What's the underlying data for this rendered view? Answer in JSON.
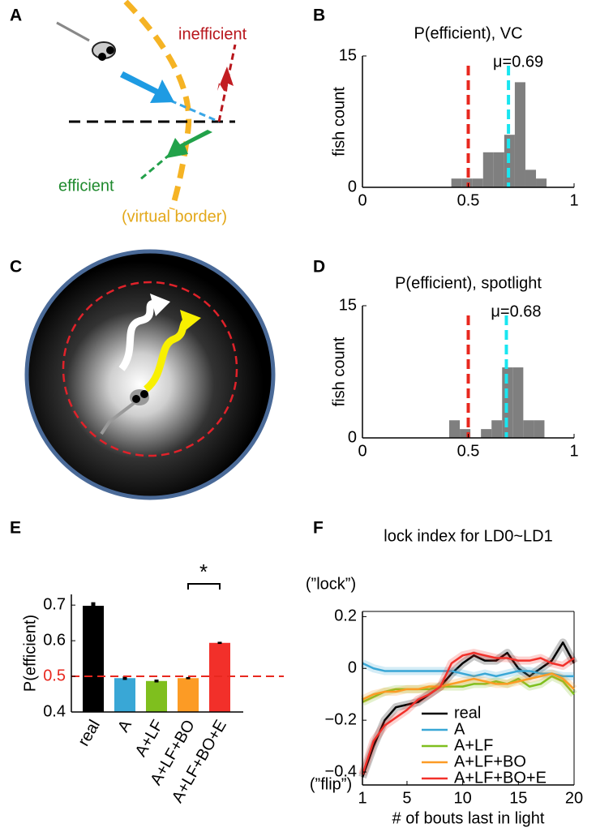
{
  "panels": {
    "labels": [
      "A",
      "B",
      "C",
      "D",
      "E",
      "F"
    ]
  },
  "diagram_a": {
    "inefficient": "inefficient",
    "efficient": "efficient",
    "border": "(virtual border)"
  },
  "chart_data": [
    {
      "type": "histogram",
      "title": "P(efficient), VC",
      "ylabel": "fish count",
      "annotation": "μ=0.69",
      "bins": [
        0.42,
        0.47,
        0.52,
        0.57,
        0.62,
        0.67,
        0.72,
        0.77,
        0.82,
        0.87
      ],
      "counts": [
        1,
        1,
        1,
        4,
        4,
        6,
        12,
        2,
        1
      ],
      "color": "#7f7f7f",
      "vlines": [
        {
          "value": 0.5,
          "color": "#e8281f"
        },
        {
          "value": 0.69,
          "color": "#19e6f0"
        }
      ],
      "xlim": [
        0,
        1
      ],
      "xticks": [
        0,
        0.5,
        1
      ],
      "ylim": [
        0,
        15
      ],
      "yticks": [
        0,
        15
      ]
    },
    {
      "type": "histogram",
      "title": "P(efficient), spotlight",
      "ylabel": "fish count",
      "annotation": "μ=0.68",
      "bins": [
        0.41,
        0.46,
        0.51,
        0.56,
        0.61,
        0.66,
        0.71,
        0.76,
        0.81,
        0.86
      ],
      "counts": [
        2,
        1,
        0,
        1,
        2,
        8,
        8,
        2,
        2
      ],
      "color": "#7f7f7f",
      "vlines": [
        {
          "value": 0.5,
          "color": "#e8281f"
        },
        {
          "value": 0.68,
          "color": "#19e6f0"
        }
      ],
      "xlim": [
        0,
        1
      ],
      "xticks": [
        0,
        0.5,
        1
      ],
      "ylim": [
        0,
        15
      ],
      "yticks": [
        0,
        15
      ]
    },
    {
      "type": "bar",
      "ylabel": "P(efficient)",
      "annotations": [
        "*"
      ],
      "categories": [
        "real",
        "A",
        "A+LF",
        "A+LF+BO",
        "A+LF+BO+E"
      ],
      "values": [
        0.698,
        0.495,
        0.487,
        0.495,
        0.594
      ],
      "errors": [
        0.01,
        0.005,
        0.004,
        0.003,
        0.003
      ],
      "colors": [
        "#000000",
        "#39a7d6",
        "#7fbf1e",
        "#fc9b25",
        "#f2302a"
      ],
      "hline": {
        "value": 0.5,
        "color": "#e8281f"
      },
      "ylim": [
        0.4,
        0.73
      ],
      "yticks": [
        0.4,
        0.5,
        0.6,
        0.7
      ]
    },
    {
      "type": "line",
      "title": "lock index for LD0~LD1",
      "xlabel": "# of bouts last in light",
      "ylabel_top": "(”lock”)",
      "ylabel_bottom": "(”flip”)",
      "legend": "lower right",
      "x": [
        1,
        2,
        3,
        4,
        5,
        6,
        7,
        8,
        9,
        10,
        11,
        12,
        13,
        14,
        15,
        16,
        17,
        18,
        19,
        20
      ],
      "series": [
        {
          "name": "real",
          "color": "#000000",
          "values": [
            -0.42,
            -0.3,
            -0.2,
            -0.15,
            -0.14,
            -0.13,
            -0.1,
            -0.07,
            -0.02,
            0.02,
            0.05,
            0.03,
            0.03,
            0.06,
            0.0,
            -0.03,
            0.0,
            0.03,
            0.1,
            0.02
          ]
        },
        {
          "name": "A",
          "color": "#39a7d6",
          "values": [
            0.02,
            0.0,
            -0.01,
            -0.01,
            -0.01,
            -0.01,
            -0.01,
            -0.01,
            -0.01,
            -0.02,
            -0.03,
            -0.02,
            -0.03,
            -0.02,
            -0.01,
            -0.01,
            -0.02,
            -0.02,
            -0.03,
            -0.03
          ]
        },
        {
          "name": "A+LF",
          "color": "#7fbf1e",
          "values": [
            -0.13,
            -0.11,
            -0.09,
            -0.08,
            -0.08,
            -0.08,
            -0.08,
            -0.07,
            -0.07,
            -0.07,
            -0.06,
            -0.06,
            -0.05,
            -0.06,
            -0.04,
            -0.07,
            -0.06,
            -0.03,
            -0.05,
            -0.1
          ]
        },
        {
          "name": "A+LF+BO",
          "color": "#fc9b25",
          "values": [
            -0.12,
            -0.1,
            -0.09,
            -0.09,
            -0.08,
            -0.08,
            -0.07,
            -0.07,
            -0.06,
            -0.05,
            -0.04,
            -0.05,
            -0.06,
            -0.06,
            -0.05,
            -0.04,
            -0.03,
            -0.02,
            -0.04,
            -0.08
          ]
        },
        {
          "name": "A+LF+BO+E",
          "color": "#f2302a",
          "values": [
            -0.41,
            -0.28,
            -0.22,
            -0.19,
            -0.16,
            -0.12,
            -0.1,
            -0.07,
            0.02,
            0.05,
            0.06,
            0.05,
            0.04,
            0.04,
            0.03,
            0.03,
            0.04,
            0.02,
            0.01,
            0.04
          ]
        }
      ],
      "xlim": [
        1,
        20
      ],
      "xticks": [
        1,
        5,
        10,
        15,
        20
      ],
      "ylim": [
        -0.45,
        0.22
      ],
      "yticks": [
        {
          "value": -0.4,
          "label": "−0.4"
        },
        {
          "value": -0.2,
          "label": "−0.2"
        },
        0,
        0.2
      ]
    }
  ]
}
